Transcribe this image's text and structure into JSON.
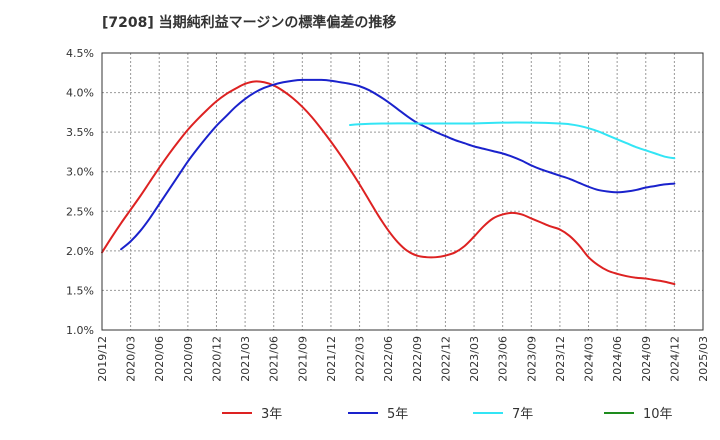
{
  "chart_data": {
    "type": "line",
    "title": "[7208]  当期純利益マージンの標準偏差の推移",
    "xlabel": "",
    "ylabel": "",
    "x_ticks": [
      "2019/12",
      "2020/03",
      "2020/06",
      "2020/09",
      "2020/12",
      "2021/03",
      "2021/06",
      "2021/09",
      "2021/12",
      "2022/03",
      "2022/06",
      "2022/09",
      "2022/12",
      "2023/03",
      "2023/06",
      "2023/09",
      "2023/12",
      "2024/03",
      "2024/06",
      "2024/09",
      "2024/12",
      "2025/03"
    ],
    "y_ticks": [
      "1.0%",
      "1.5%",
      "2.0%",
      "2.5%",
      "3.0%",
      "3.5%",
      "4.0%",
      "4.5%"
    ],
    "ylim": [
      1.0,
      4.5
    ],
    "grid": true,
    "legend_position": "bottom",
    "series": [
      {
        "name": "3年",
        "color": "#dd2222",
        "points": [
          [
            "2019/12",
            1.98
          ],
          [
            "2020/01",
            2.17
          ],
          [
            "2020/02",
            2.35
          ],
          [
            "2020/03",
            2.52
          ],
          [
            "2020/04",
            2.69
          ],
          [
            "2020/05",
            2.87
          ],
          [
            "2020/06",
            3.05
          ],
          [
            "2020/07",
            3.22
          ],
          [
            "2020/08",
            3.38
          ],
          [
            "2020/09",
            3.53
          ],
          [
            "2020/10",
            3.66
          ],
          [
            "2020/11",
            3.78
          ],
          [
            "2020/12",
            3.89
          ],
          [
            "2021/01",
            3.98
          ],
          [
            "2021/02",
            4.05
          ],
          [
            "2021/03",
            4.11
          ],
          [
            "2021/04",
            4.14
          ],
          [
            "2021/05",
            4.13
          ],
          [
            "2021/06",
            4.09
          ],
          [
            "2021/07",
            4.02
          ],
          [
            "2021/08",
            3.93
          ],
          [
            "2021/09",
            3.82
          ],
          [
            "2021/10",
            3.69
          ],
          [
            "2021/11",
            3.54
          ],
          [
            "2021/12",
            3.38
          ],
          [
            "2022/01",
            3.21
          ],
          [
            "2022/02",
            3.03
          ],
          [
            "2022/03",
            2.84
          ],
          [
            "2022/04",
            2.64
          ],
          [
            "2022/05",
            2.44
          ],
          [
            "2022/06",
            2.26
          ],
          [
            "2022/07",
            2.11
          ],
          [
            "2022/08",
            2.0
          ],
          [
            "2022/09",
            1.94
          ],
          [
            "2022/10",
            1.92
          ],
          [
            "2022/11",
            1.92
          ],
          [
            "2022/12",
            1.94
          ],
          [
            "2023/01",
            1.98
          ],
          [
            "2023/02",
            2.06
          ],
          [
            "2023/03",
            2.18
          ],
          [
            "2023/04",
            2.31
          ],
          [
            "2023/05",
            2.41
          ],
          [
            "2023/06",
            2.46
          ],
          [
            "2023/07",
            2.48
          ],
          [
            "2023/08",
            2.46
          ],
          [
            "2023/09",
            2.41
          ],
          [
            "2023/10",
            2.36
          ],
          [
            "2023/11",
            2.31
          ],
          [
            "2023/12",
            2.27
          ],
          [
            "2024/01",
            2.19
          ],
          [
            "2024/02",
            2.07
          ],
          [
            "2024/03",
            1.92
          ],
          [
            "2024/04",
            1.82
          ],
          [
            "2024/05",
            1.75
          ],
          [
            "2024/06",
            1.71
          ],
          [
            "2024/07",
            1.68
          ],
          [
            "2024/08",
            1.66
          ],
          [
            "2024/09",
            1.65
          ],
          [
            "2024/10",
            1.63
          ],
          [
            "2024/11",
            1.61
          ],
          [
            "2024/12",
            1.58
          ]
        ]
      },
      {
        "name": "5年",
        "color": "#1a22cc",
        "points": [
          [
            "2020/02",
            2.02
          ],
          [
            "2020/03",
            2.12
          ],
          [
            "2020/04",
            2.25
          ],
          [
            "2020/05",
            2.41
          ],
          [
            "2020/06",
            2.59
          ],
          [
            "2020/07",
            2.77
          ],
          [
            "2020/08",
            2.95
          ],
          [
            "2020/09",
            3.13
          ],
          [
            "2020/10",
            3.29
          ],
          [
            "2020/11",
            3.44
          ],
          [
            "2020/12",
            3.58
          ],
          [
            "2021/01",
            3.7
          ],
          [
            "2021/02",
            3.82
          ],
          [
            "2021/03",
            3.92
          ],
          [
            "2021/04",
            4.0
          ],
          [
            "2021/05",
            4.06
          ],
          [
            "2021/06",
            4.1
          ],
          [
            "2021/07",
            4.13
          ],
          [
            "2021/08",
            4.15
          ],
          [
            "2021/09",
            4.16
          ],
          [
            "2021/10",
            4.16
          ],
          [
            "2021/11",
            4.16
          ],
          [
            "2021/12",
            4.15
          ],
          [
            "2022/01",
            4.13
          ],
          [
            "2022/02",
            4.11
          ],
          [
            "2022/03",
            4.08
          ],
          [
            "2022/04",
            4.03
          ],
          [
            "2022/05",
            3.96
          ],
          [
            "2022/06",
            3.88
          ],
          [
            "2022/07",
            3.79
          ],
          [
            "2022/08",
            3.7
          ],
          [
            "2022/09",
            3.62
          ],
          [
            "2022/10",
            3.56
          ],
          [
            "2022/11",
            3.5
          ],
          [
            "2022/12",
            3.45
          ],
          [
            "2023/01",
            3.4
          ],
          [
            "2023/02",
            3.36
          ],
          [
            "2023/03",
            3.32
          ],
          [
            "2023/04",
            3.29
          ],
          [
            "2023/05",
            3.26
          ],
          [
            "2023/06",
            3.23
          ],
          [
            "2023/07",
            3.19
          ],
          [
            "2023/08",
            3.14
          ],
          [
            "2023/09",
            3.08
          ],
          [
            "2023/10",
            3.03
          ],
          [
            "2023/11",
            2.99
          ],
          [
            "2023/12",
            2.95
          ],
          [
            "2024/01",
            2.91
          ],
          [
            "2024/02",
            2.86
          ],
          [
            "2024/03",
            2.81
          ],
          [
            "2024/04",
            2.77
          ],
          [
            "2024/05",
            2.75
          ],
          [
            "2024/06",
            2.74
          ],
          [
            "2024/07",
            2.75
          ],
          [
            "2024/08",
            2.77
          ],
          [
            "2024/09",
            2.8
          ],
          [
            "2024/10",
            2.82
          ],
          [
            "2024/11",
            2.84
          ],
          [
            "2024/12",
            2.85
          ]
        ]
      },
      {
        "name": "7年",
        "color": "#33e5f5",
        "points": [
          [
            "2022/02",
            3.59
          ],
          [
            "2022/03",
            3.6
          ],
          [
            "2022/06",
            3.61
          ],
          [
            "2022/09",
            3.61
          ],
          [
            "2022/12",
            3.61
          ],
          [
            "2023/03",
            3.61
          ],
          [
            "2023/06",
            3.62
          ],
          [
            "2023/09",
            3.62
          ],
          [
            "2023/12",
            3.61
          ],
          [
            "2024/01",
            3.6
          ],
          [
            "2024/02",
            3.58
          ],
          [
            "2024/03",
            3.55
          ],
          [
            "2024/04",
            3.51
          ],
          [
            "2024/05",
            3.46
          ],
          [
            "2024/06",
            3.41
          ],
          [
            "2024/07",
            3.36
          ],
          [
            "2024/08",
            3.31
          ],
          [
            "2024/09",
            3.27
          ],
          [
            "2024/10",
            3.23
          ],
          [
            "2024/11",
            3.19
          ],
          [
            "2024/12",
            3.17
          ]
        ]
      },
      {
        "name": "10年",
        "color": "#1e8c1e",
        "points": []
      }
    ]
  }
}
